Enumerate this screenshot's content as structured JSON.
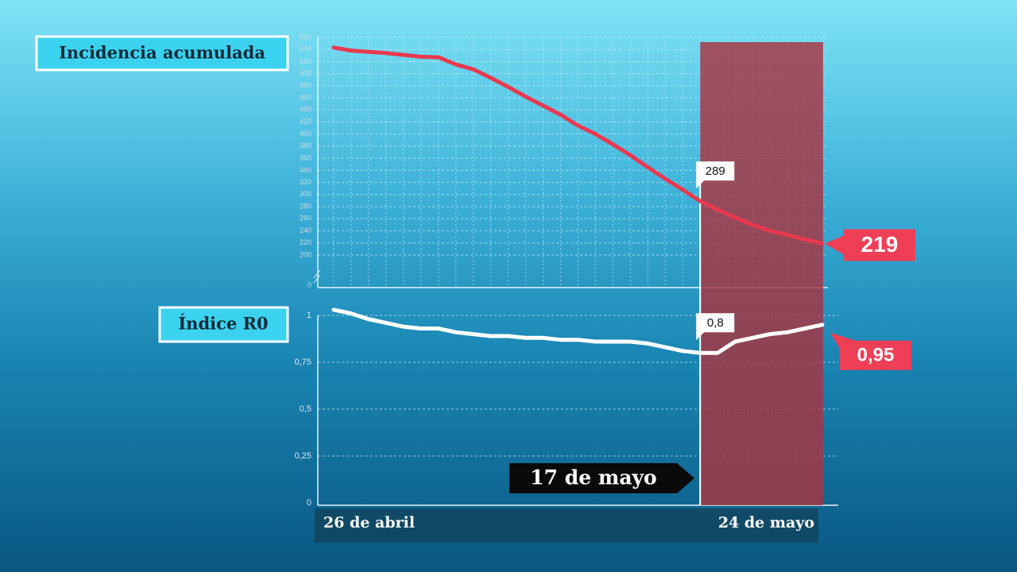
{
  "chart_data": [
    {
      "type": "line",
      "title": "Incidencia acumulada",
      "axis_break": true,
      "series": [
        {
          "name": null,
          "color": "#e8394f",
          "values": [
            543,
            538,
            536,
            534,
            531,
            528,
            527,
            515,
            507,
            493,
            478,
            462,
            447,
            432,
            414,
            400,
            383,
            365,
            345,
            326,
            308,
            289,
            275,
            262,
            250,
            240,
            233,
            226,
            219
          ],
          "value_labels": [
            null,
            null,
            null,
            null,
            null,
            null,
            null,
            null,
            null,
            null,
            null,
            null,
            null,
            null,
            null,
            null,
            null,
            null,
            null,
            null,
            null,
            "289",
            null,
            null,
            null,
            null,
            null,
            null,
            "219"
          ]
        }
      ],
      "ylim": [
        150,
        560
      ],
      "yticks": [
        0,
        200,
        220,
        240,
        260,
        280,
        300,
        320,
        340,
        360,
        380,
        400,
        420,
        440,
        460,
        480,
        500,
        520,
        540,
        560
      ],
      "grid": true
    },
    {
      "type": "line",
      "title": "Índice R0",
      "categories": [
        "26 de abril",
        null,
        null,
        null,
        null,
        null,
        null,
        null,
        null,
        null,
        null,
        null,
        null,
        null,
        null,
        null,
        null,
        null,
        null,
        null,
        null,
        null,
        null,
        null,
        null,
        null,
        null,
        null,
        "24 de mayo"
      ],
      "series": [
        {
          "name": null,
          "color": "#ffffff",
          "values": [
            1.03,
            1.01,
            0.98,
            0.96,
            0.94,
            0.93,
            0.93,
            0.91,
            0.9,
            0.89,
            0.89,
            0.88,
            0.88,
            0.87,
            0.87,
            0.86,
            0.86,
            0.86,
            0.85,
            0.83,
            0.81,
            0.8,
            0.8,
            0.86,
            0.88,
            0.9,
            0.91,
            0.93,
            0.95
          ],
          "value_labels": [
            null,
            null,
            null,
            null,
            null,
            null,
            null,
            null,
            null,
            null,
            null,
            null,
            null,
            null,
            null,
            null,
            null,
            null,
            null,
            null,
            null,
            "0,8",
            null,
            null,
            null,
            null,
            null,
            null,
            "0,95"
          ]
        }
      ],
      "ylim": [
        0,
        1
      ],
      "yticks": [
        0,
        {
          "value": 0.25,
          "label": "0,25"
        },
        {
          "value": 0.5,
          "label": "0,5"
        },
        {
          "value": 0.75,
          "label": "0,75"
        },
        1
      ],
      "grid": true,
      "annotation": "17 de mayo",
      "highlight_color": "#a8343f"
    }
  ]
}
